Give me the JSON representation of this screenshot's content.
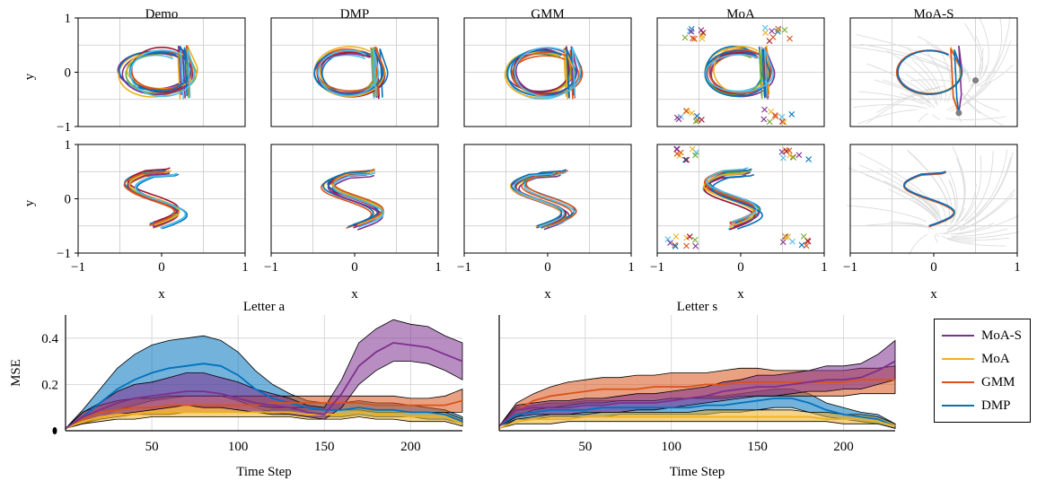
{
  "chart_data": [
    {
      "type": "line",
      "panel": "trajectory-grid",
      "column_titles": [
        "Demo",
        "DMP",
        "GMM",
        "MoA",
        "MoA-S"
      ],
      "rows": [
        "a",
        "s"
      ],
      "xlabel": "x",
      "ylabel": "y",
      "xlim": [
        -1,
        1
      ],
      "ylim": [
        -1,
        1
      ],
      "xticks": [
        "−1",
        "0",
        "1"
      ],
      "yticks": [
        "−1",
        "0",
        "1"
      ],
      "grid": true,
      "series_colors": [
        "#7e2f8e",
        "#edb120",
        "#d95319",
        "#0072bd",
        "#4dbeee",
        "#77ac30",
        "#a2142f"
      ],
      "moa_s_attractors_a": [
        [
          0.5,
          -0.15
        ],
        [
          0.3,
          -0.75
        ]
      ]
    },
    {
      "type": "area",
      "title": "Letter a",
      "xlabel": "Time Step",
      "ylabel": "MSE",
      "xlim": [
        0,
        230
      ],
      "ylim": [
        0,
        0.5
      ],
      "xticks": [
        50,
        100,
        150,
        200
      ],
      "yticks": [
        0,
        0.2,
        0.4
      ],
      "grid": true,
      "x": [
        0,
        10,
        20,
        30,
        40,
        50,
        60,
        70,
        80,
        90,
        100,
        110,
        120,
        130,
        140,
        150,
        160,
        170,
        180,
        190,
        200,
        210,
        220,
        230
      ],
      "series": [
        {
          "name": "MoA-S",
          "color": "#7e2f8e",
          "mean": [
            0.01,
            0.06,
            0.09,
            0.12,
            0.14,
            0.15,
            0.16,
            0.17,
            0.17,
            0.16,
            0.14,
            0.12,
            0.11,
            0.1,
            0.08,
            0.07,
            0.16,
            0.28,
            0.34,
            0.38,
            0.37,
            0.36,
            0.33,
            0.3
          ],
          "lower": [
            0.01,
            0.04,
            0.06,
            0.07,
            0.08,
            0.09,
            0.1,
            0.11,
            0.1,
            0.1,
            0.09,
            0.08,
            0.07,
            0.07,
            0.06,
            0.05,
            0.1,
            0.2,
            0.26,
            0.3,
            0.3,
            0.29,
            0.26,
            0.22
          ],
          "upper": [
            0.01,
            0.08,
            0.12,
            0.17,
            0.2,
            0.21,
            0.23,
            0.25,
            0.25,
            0.23,
            0.21,
            0.18,
            0.16,
            0.14,
            0.11,
            0.1,
            0.22,
            0.38,
            0.44,
            0.48,
            0.46,
            0.45,
            0.41,
            0.38
          ]
        },
        {
          "name": "MoA",
          "color": "#edb120",
          "mean": [
            0.01,
            0.04,
            0.06,
            0.07,
            0.07,
            0.08,
            0.08,
            0.08,
            0.08,
            0.08,
            0.08,
            0.08,
            0.08,
            0.08,
            0.07,
            0.07,
            0.07,
            0.08,
            0.07,
            0.07,
            0.06,
            0.06,
            0.06,
            0.03
          ],
          "lower": [
            0.01,
            0.03,
            0.04,
            0.05,
            0.05,
            0.06,
            0.06,
            0.06,
            0.06,
            0.06,
            0.06,
            0.06,
            0.06,
            0.06,
            0.05,
            0.05,
            0.05,
            0.06,
            0.05,
            0.05,
            0.04,
            0.04,
            0.04,
            0.02
          ],
          "upper": [
            0.01,
            0.05,
            0.08,
            0.09,
            0.1,
            0.1,
            0.11,
            0.11,
            0.11,
            0.11,
            0.11,
            0.11,
            0.1,
            0.1,
            0.1,
            0.09,
            0.09,
            0.1,
            0.09,
            0.09,
            0.08,
            0.08,
            0.08,
            0.05
          ]
        },
        {
          "name": "GMM",
          "color": "#d95319",
          "mean": [
            0.01,
            0.05,
            0.08,
            0.09,
            0.1,
            0.1,
            0.11,
            0.11,
            0.11,
            0.11,
            0.11,
            0.11,
            0.12,
            0.12,
            0.12,
            0.12,
            0.12,
            0.12,
            0.11,
            0.11,
            0.11,
            0.11,
            0.11,
            0.13
          ],
          "lower": [
            0.01,
            0.03,
            0.05,
            0.06,
            0.07,
            0.07,
            0.07,
            0.08,
            0.08,
            0.08,
            0.08,
            0.08,
            0.09,
            0.09,
            0.09,
            0.09,
            0.09,
            0.09,
            0.08,
            0.08,
            0.08,
            0.08,
            0.08,
            0.08
          ],
          "upper": [
            0.01,
            0.08,
            0.11,
            0.13,
            0.14,
            0.14,
            0.15,
            0.15,
            0.15,
            0.15,
            0.15,
            0.15,
            0.15,
            0.15,
            0.15,
            0.15,
            0.15,
            0.15,
            0.15,
            0.15,
            0.14,
            0.14,
            0.15,
            0.18
          ]
        },
        {
          "name": "DMP",
          "color": "#0072bd",
          "mean": [
            0.01,
            0.06,
            0.12,
            0.18,
            0.22,
            0.25,
            0.27,
            0.28,
            0.29,
            0.28,
            0.24,
            0.18,
            0.14,
            0.12,
            0.1,
            0.09,
            0.09,
            0.1,
            0.09,
            0.09,
            0.08,
            0.08,
            0.07,
            0.04
          ],
          "lower": [
            0.01,
            0.03,
            0.06,
            0.09,
            0.11,
            0.13,
            0.14,
            0.15,
            0.15,
            0.15,
            0.13,
            0.1,
            0.08,
            0.07,
            0.06,
            0.06,
            0.06,
            0.07,
            0.06,
            0.06,
            0.06,
            0.05,
            0.05,
            0.03
          ],
          "upper": [
            0.01,
            0.09,
            0.18,
            0.27,
            0.33,
            0.37,
            0.39,
            0.4,
            0.41,
            0.39,
            0.34,
            0.26,
            0.2,
            0.16,
            0.13,
            0.12,
            0.12,
            0.13,
            0.12,
            0.12,
            0.11,
            0.1,
            0.09,
            0.06
          ]
        }
      ]
    },
    {
      "type": "area",
      "title": "Letter s",
      "xlabel": "Time Step",
      "ylim": [
        0,
        0.5
      ],
      "xlim": [
        0,
        230
      ],
      "xticks": [
        50,
        100,
        150,
        200
      ],
      "grid": true,
      "x": [
        0,
        10,
        20,
        30,
        40,
        50,
        60,
        70,
        80,
        90,
        100,
        110,
        120,
        130,
        140,
        150,
        160,
        170,
        180,
        190,
        200,
        210,
        220,
        230
      ],
      "series": [
        {
          "name": "MoA-S",
          "color": "#7e2f8e",
          "mean": [
            0.02,
            0.09,
            0.1,
            0.1,
            0.1,
            0.11,
            0.11,
            0.12,
            0.12,
            0.12,
            0.13,
            0.14,
            0.15,
            0.17,
            0.18,
            0.19,
            0.19,
            0.2,
            0.21,
            0.22,
            0.22,
            0.23,
            0.26,
            0.3
          ],
          "lower": [
            0.02,
            0.06,
            0.07,
            0.07,
            0.07,
            0.08,
            0.08,
            0.08,
            0.09,
            0.09,
            0.1,
            0.11,
            0.12,
            0.13,
            0.14,
            0.15,
            0.15,
            0.16,
            0.17,
            0.17,
            0.18,
            0.18,
            0.2,
            0.22
          ],
          "upper": [
            0.02,
            0.11,
            0.12,
            0.13,
            0.13,
            0.14,
            0.14,
            0.15,
            0.16,
            0.16,
            0.17,
            0.18,
            0.19,
            0.21,
            0.22,
            0.24,
            0.24,
            0.25,
            0.26,
            0.28,
            0.28,
            0.29,
            0.33,
            0.39
          ]
        },
        {
          "name": "MoA",
          "color": "#edb120",
          "mean": [
            0.01,
            0.04,
            0.05,
            0.05,
            0.05,
            0.06,
            0.06,
            0.06,
            0.06,
            0.06,
            0.06,
            0.06,
            0.06,
            0.06,
            0.06,
            0.06,
            0.06,
            0.06,
            0.06,
            0.05,
            0.05,
            0.05,
            0.04,
            0.02
          ],
          "lower": [
            0.01,
            0.03,
            0.03,
            0.03,
            0.04,
            0.04,
            0.04,
            0.04,
            0.04,
            0.04,
            0.04,
            0.04,
            0.04,
            0.04,
            0.04,
            0.04,
            0.04,
            0.04,
            0.04,
            0.04,
            0.03,
            0.03,
            0.03,
            0.01
          ],
          "upper": [
            0.01,
            0.05,
            0.06,
            0.07,
            0.07,
            0.07,
            0.08,
            0.08,
            0.08,
            0.08,
            0.08,
            0.08,
            0.09,
            0.09,
            0.09,
            0.09,
            0.09,
            0.09,
            0.08,
            0.08,
            0.07,
            0.07,
            0.06,
            0.03
          ]
        },
        {
          "name": "GMM",
          "color": "#d95319",
          "mean": [
            0.02,
            0.09,
            0.13,
            0.15,
            0.16,
            0.17,
            0.18,
            0.18,
            0.18,
            0.19,
            0.19,
            0.19,
            0.2,
            0.2,
            0.21,
            0.21,
            0.21,
            0.21,
            0.21,
            0.21,
            0.21,
            0.22,
            0.22,
            0.22
          ],
          "lower": [
            0.02,
            0.06,
            0.09,
            0.1,
            0.11,
            0.12,
            0.12,
            0.13,
            0.13,
            0.13,
            0.14,
            0.14,
            0.14,
            0.14,
            0.15,
            0.15,
            0.15,
            0.15,
            0.15,
            0.15,
            0.15,
            0.16,
            0.16,
            0.16
          ],
          "upper": [
            0.02,
            0.12,
            0.16,
            0.19,
            0.21,
            0.22,
            0.23,
            0.23,
            0.24,
            0.24,
            0.25,
            0.25,
            0.25,
            0.26,
            0.27,
            0.27,
            0.26,
            0.26,
            0.26,
            0.26,
            0.26,
            0.27,
            0.27,
            0.28
          ]
        },
        {
          "name": "DMP",
          "color": "#0072bd",
          "mean": [
            0.02,
            0.07,
            0.08,
            0.09,
            0.09,
            0.09,
            0.1,
            0.1,
            0.1,
            0.1,
            0.1,
            0.1,
            0.11,
            0.11,
            0.12,
            0.13,
            0.14,
            0.14,
            0.12,
            0.09,
            0.07,
            0.06,
            0.05,
            0.02
          ],
          "lower": [
            0.02,
            0.05,
            0.05,
            0.06,
            0.06,
            0.06,
            0.06,
            0.07,
            0.07,
            0.07,
            0.07,
            0.07,
            0.07,
            0.08,
            0.08,
            0.09,
            0.1,
            0.1,
            0.08,
            0.06,
            0.05,
            0.04,
            0.03,
            0.01
          ],
          "upper": [
            0.02,
            0.1,
            0.11,
            0.12,
            0.12,
            0.13,
            0.13,
            0.13,
            0.13,
            0.13,
            0.14,
            0.14,
            0.15,
            0.15,
            0.16,
            0.17,
            0.18,
            0.18,
            0.16,
            0.12,
            0.1,
            0.08,
            0.07,
            0.03
          ]
        }
      ]
    }
  ],
  "legend": {
    "items": [
      {
        "label": "MoA-S",
        "color": "#7e2f8e"
      },
      {
        "label": "MoA",
        "color": "#edb120"
      },
      {
        "label": "GMM",
        "color": "#d95319"
      },
      {
        "label": "DMP",
        "color": "#0072bd"
      }
    ]
  }
}
